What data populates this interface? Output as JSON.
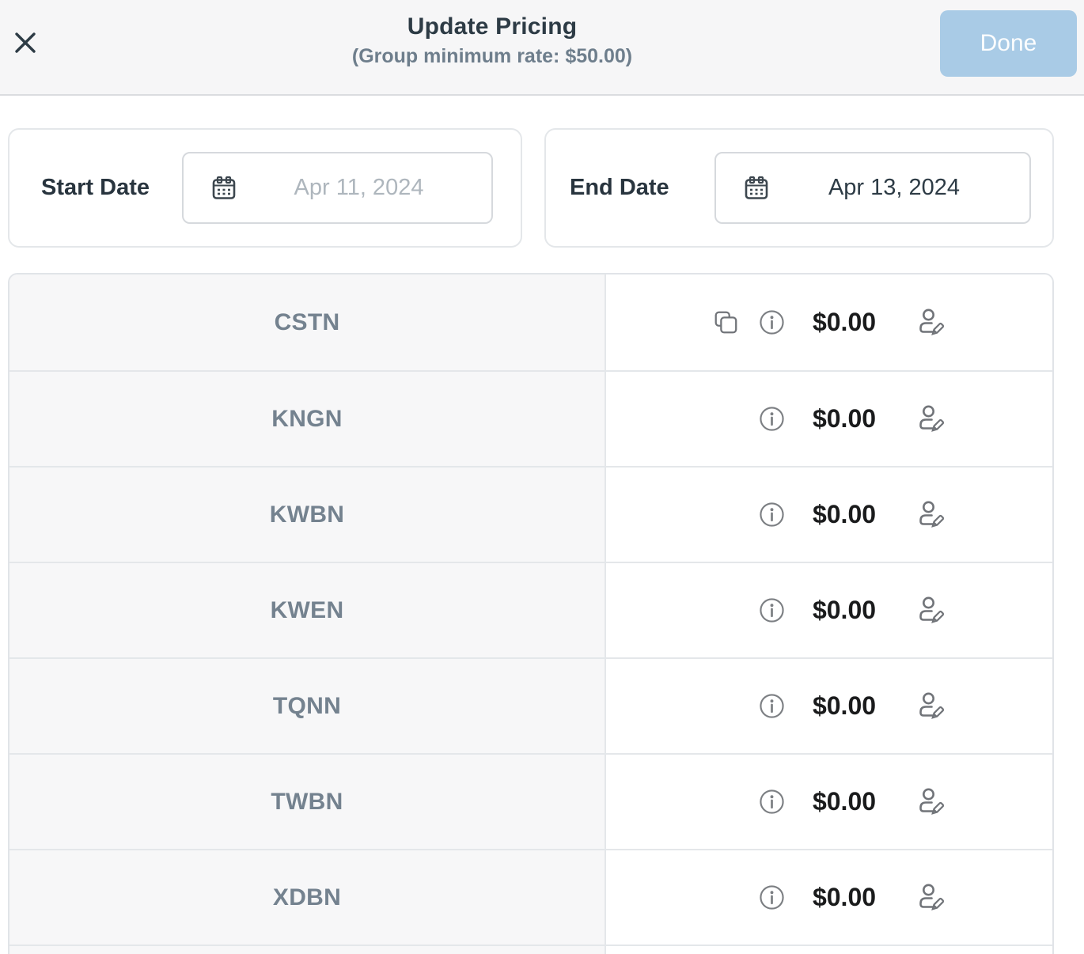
{
  "header": {
    "title": "Update Pricing",
    "subtitle": "(Group minimum rate: $50.00)",
    "done_label": "Done"
  },
  "filters": {
    "start_date": {
      "label": "Start Date",
      "placeholder": "Apr 11, 2024"
    },
    "end_date": {
      "label": "End Date",
      "value": "Apr 13, 2024"
    }
  },
  "table": {
    "rows": [
      {
        "code": "CSTN",
        "price": "$0.00",
        "has_copy": true
      },
      {
        "code": "KNGN",
        "price": "$0.00",
        "has_copy": false
      },
      {
        "code": "KWBN",
        "price": "$0.00",
        "has_copy": false
      },
      {
        "code": "KWEN",
        "price": "$0.00",
        "has_copy": false
      },
      {
        "code": "TQNN",
        "price": "$0.00",
        "has_copy": false
      },
      {
        "code": "TWBN",
        "price": "$0.00",
        "has_copy": false
      },
      {
        "code": "XDBN",
        "price": "$0.00",
        "has_copy": false
      }
    ]
  },
  "icons": {
    "close": "close-icon",
    "calendar": "calendar-icon",
    "copy": "copy-icon",
    "info": "info-icon",
    "person_edit": "person-edit-icon"
  },
  "colors": {
    "accent_button": "#a9cbe6",
    "header_bg": "#f6f6f7",
    "title_text": "#2d3b45",
    "subtitle_text": "#6e7e8c",
    "row_label_text": "#74828f",
    "price_text": "#1a1b1c",
    "border": "#e4e7ea",
    "icon_gray": "#717479",
    "placeholder_text": "#aeb6bd"
  }
}
